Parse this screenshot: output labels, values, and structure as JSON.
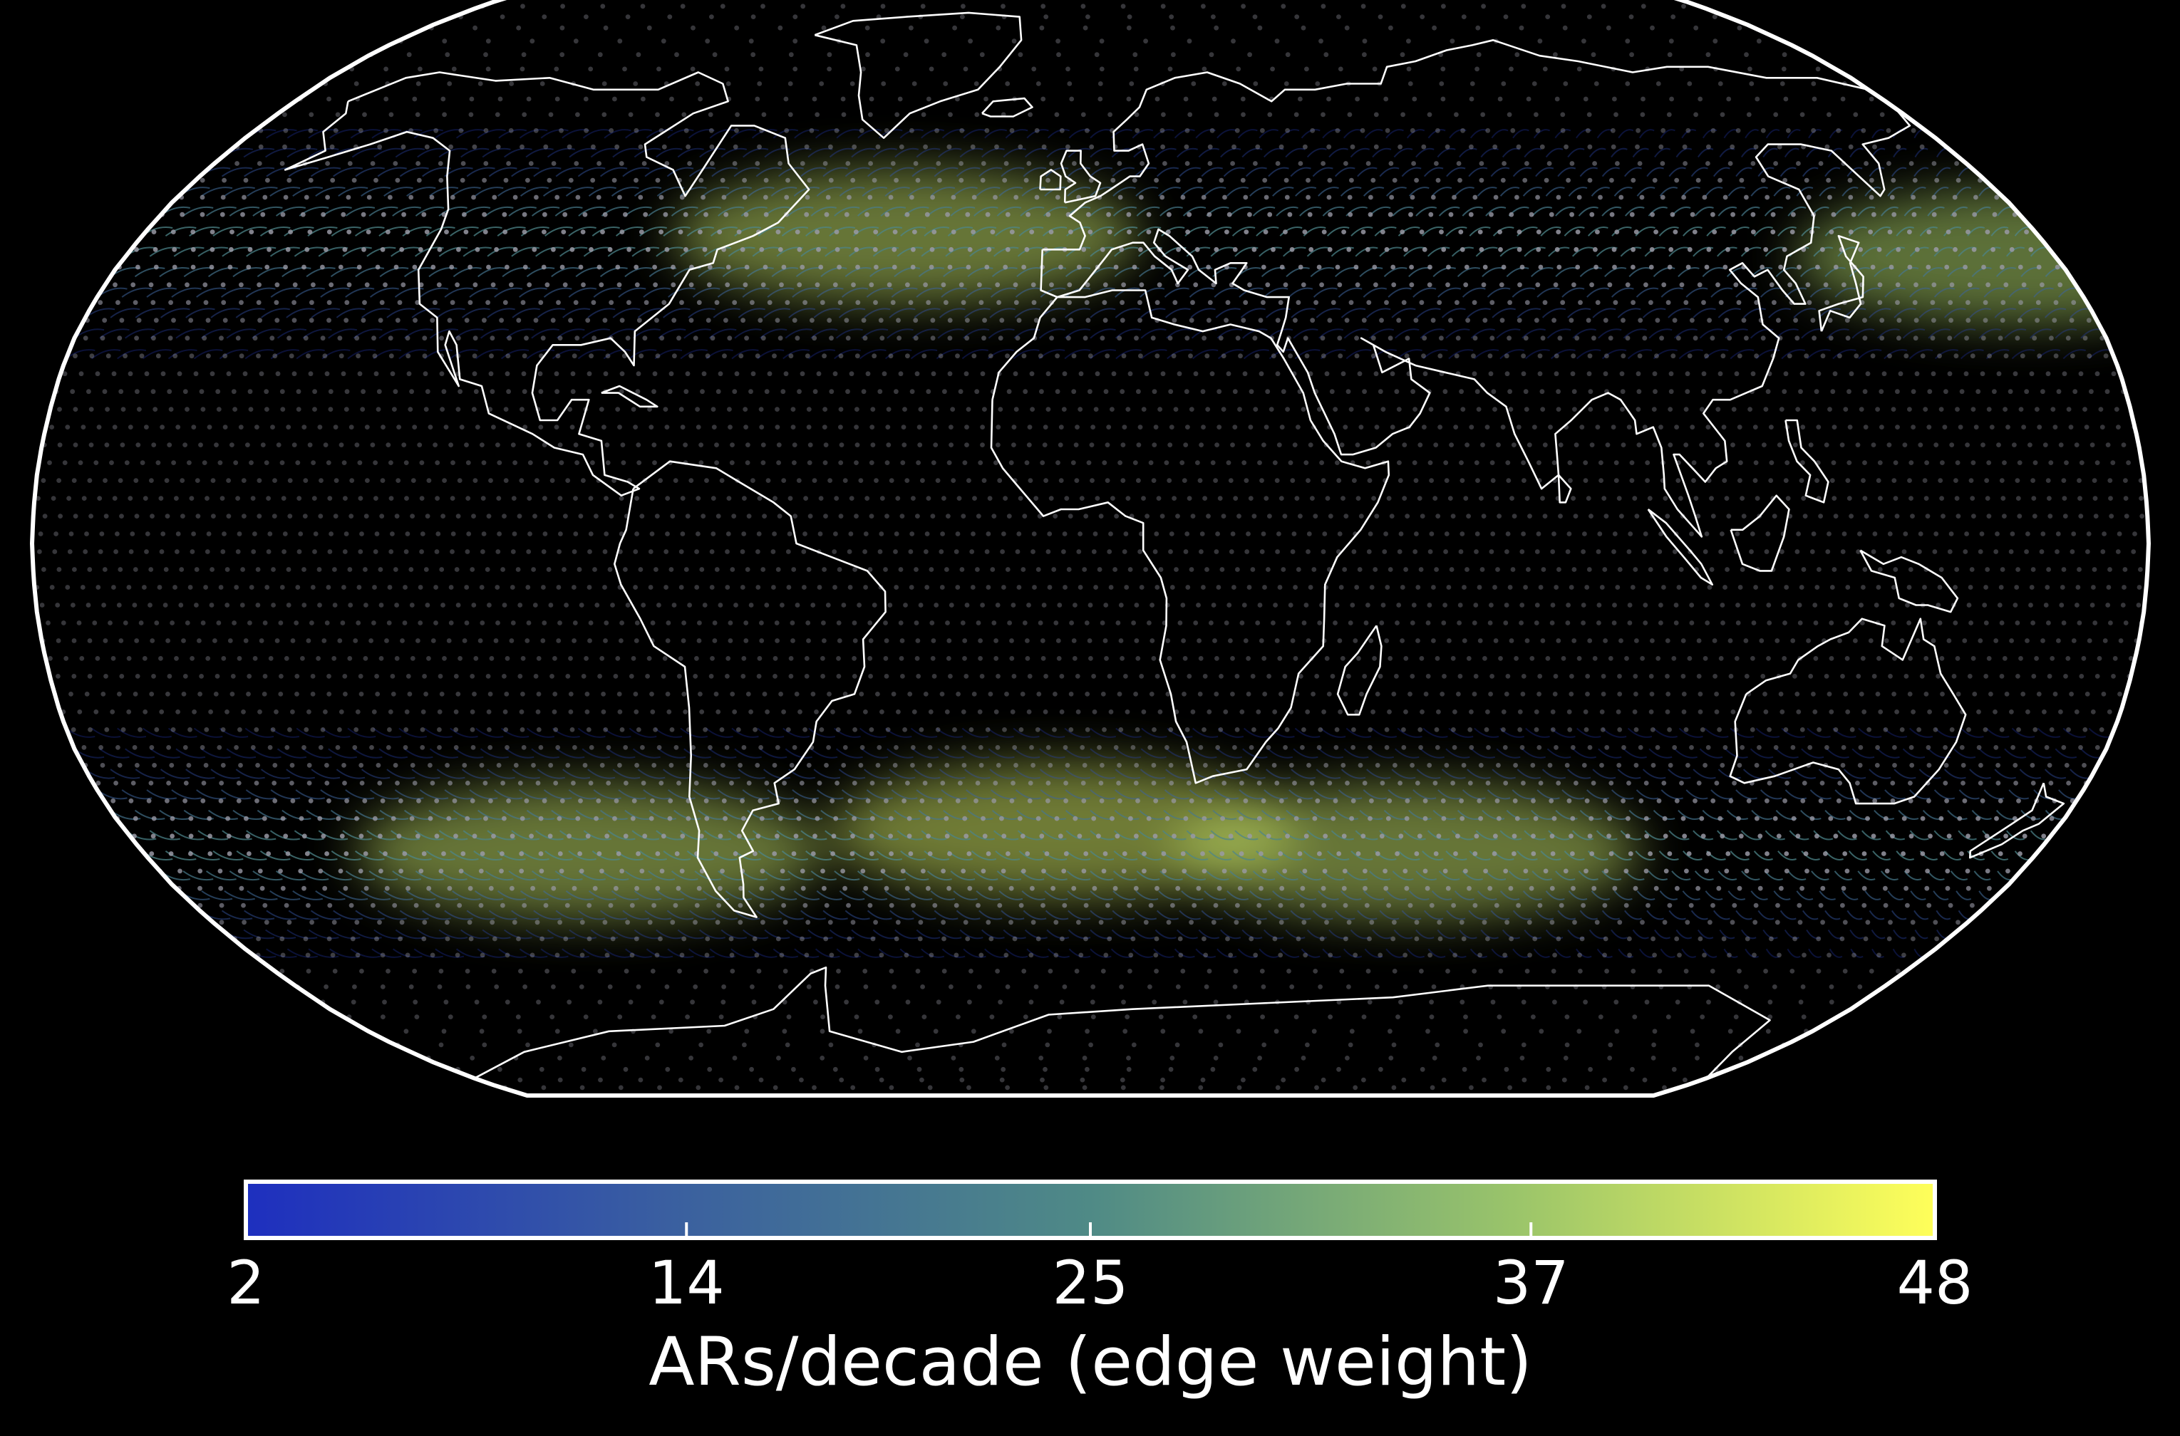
{
  "map": {
    "projection": "robinson",
    "background": "#000000",
    "frame_color": "#ffffff",
    "coastline_color": "#ffffff",
    "node_color": "#9a9aa6",
    "edge_colormap": [
      "#1e2fbf",
      "#3a5fa0",
      "#4f8a86",
      "#9ac46a",
      "#ffff5a"
    ],
    "high_weight_regions": [
      {
        "name": "north-atlantic-corridor",
        "lon": -35,
        "lat": 45,
        "weight": 40
      },
      {
        "name": "north-pacific-corridor",
        "lon": 175,
        "lat": 42,
        "weight": 38
      },
      {
        "name": "south-pacific-corridor",
        "lon": -95,
        "lat": -45,
        "weight": 40
      },
      {
        "name": "south-atlantic-corridor",
        "lon": -5,
        "lat": -42,
        "weight": 42
      },
      {
        "name": "south-indian-corridor",
        "lon": 60,
        "lat": -45,
        "weight": 40
      }
    ]
  },
  "colorbar": {
    "min": 2,
    "max": 48,
    "ticks": [
      "2",
      "14",
      "25",
      "37",
      "48"
    ],
    "tick_values": [
      2,
      14,
      25,
      37,
      48
    ],
    "label": "ARs/decade (edge weight)"
  }
}
